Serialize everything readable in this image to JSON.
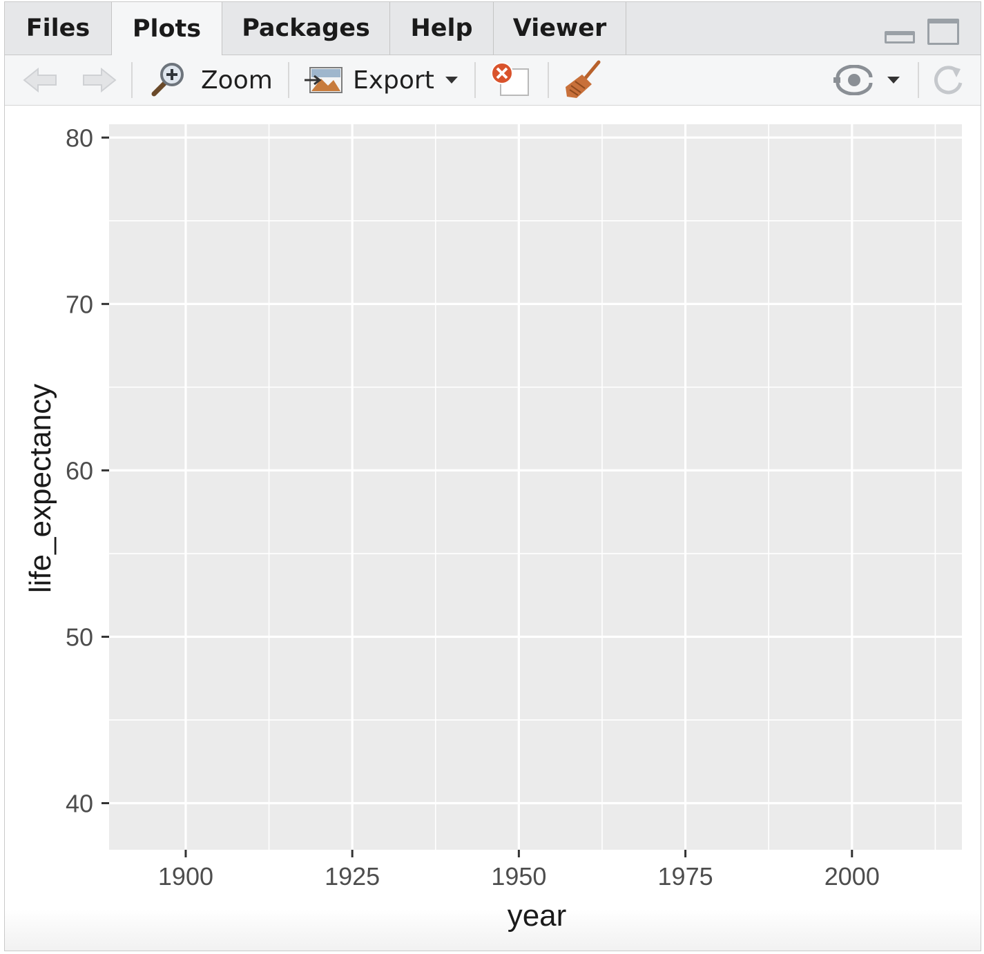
{
  "tabs": [
    {
      "label": "Files",
      "active": false
    },
    {
      "label": "Plots",
      "active": true
    },
    {
      "label": "Packages",
      "active": false
    },
    {
      "label": "Help",
      "active": false
    },
    {
      "label": "Viewer",
      "active": false
    }
  ],
  "toolbar": {
    "zoom_label": "Zoom",
    "export_label": "Export",
    "icons": [
      "arrow-left-icon",
      "arrow-right-icon",
      "zoom-icon",
      "export-icon",
      "remove-plot-icon",
      "broom-icon",
      "publish-icon",
      "refresh-icon"
    ]
  },
  "colors": {
    "panel_background": "#ebebeb",
    "grid": "#ffffff",
    "tab_active": "#f5f6f7",
    "tab_inactive": "#e6e7e9",
    "broom": "#c8703a",
    "remove": "#d9532c"
  },
  "chart_data": {
    "type": "scatter",
    "title": "",
    "xlabel": "year",
    "ylabel": "life_expectancy",
    "xlim": [
      1888.5,
      2016.5
    ],
    "ylim": [
      37.2,
      80.8
    ],
    "x_ticks": [
      1900,
      1925,
      1950,
      1975,
      2000
    ],
    "y_ticks": [
      40,
      50,
      60,
      70,
      80
    ],
    "x_tick_labels": [
      "1900",
      "1925",
      "1950",
      "1975",
      "2000"
    ],
    "y_tick_labels": [
      "40",
      "50",
      "60",
      "70",
      "80"
    ],
    "x_minor_ticks": [
      1912.5,
      1937.5,
      1962.5,
      1987.5,
      2012.5
    ],
    "y_minor_ticks": [
      45,
      55,
      65,
      75
    ],
    "series": [],
    "grid": true,
    "legend": "none"
  }
}
